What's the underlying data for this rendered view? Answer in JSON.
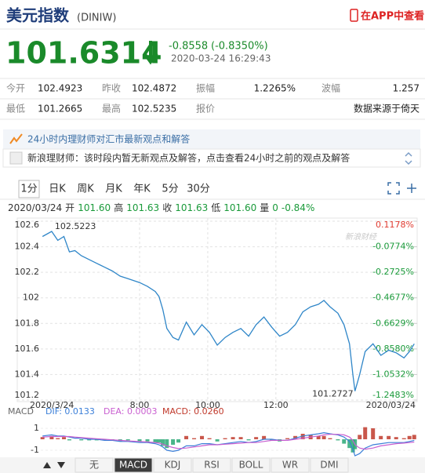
{
  "header": {
    "title": "美元指数",
    "code": "(DINIW)",
    "app_link": "在APP中查看"
  },
  "quote": {
    "price": "101.6314",
    "change": "-0.8558",
    "change_pct": "(-0.8350%)",
    "time": "2020-03-24 16:29:43"
  },
  "stats": {
    "rows": [
      [
        {
          "label": "今开",
          "value": "102.4923"
        },
        {
          "label": "昨收",
          "value": "102.4872"
        },
        {
          "label": "振幅",
          "value": "1.2265%"
        },
        {
          "label": "波幅",
          "value": "1.257"
        }
      ],
      [
        {
          "label": "最低",
          "value": "101.2665"
        },
        {
          "label": "最高",
          "value": "102.5235"
        },
        {
          "label": "报价"
        },
        {
          "value": "数据来源于倚天"
        }
      ]
    ]
  },
  "advisor": {
    "banner": "24小时内理财师对汇市最新观点和解答",
    "message": "新浪理财师：该时段内暂无新观点及解答，点击查看24小时之前的观点及解答"
  },
  "period_tabs": {
    "items": [
      "1分",
      "日K",
      "周K",
      "月K",
      "年K",
      "5分",
      "30分"
    ],
    "selected": 0
  },
  "ohlc_line": {
    "date": "2020/03/24",
    "items": [
      {
        "label": "开",
        "value": "101.60"
      },
      {
        "label": "高",
        "value": "101.63"
      },
      {
        "label": "收",
        "value": "101.63"
      },
      {
        "label": "低",
        "value": "101.60"
      },
      {
        "label": "量",
        "value": "0"
      }
    ],
    "change": "-0.84%"
  },
  "chart_data": [
    {
      "type": "line",
      "color": "#2f86c8",
      "grid": true,
      "watermark": "新浪财经",
      "x_start_label": "2020/3/24",
      "x_end_label": "2020/03/24",
      "max_label": "102.5223",
      "min_label": "101.2727",
      "x": [
        5.15,
        5.42,
        5.6,
        5.78,
        5.94,
        6.1,
        6.29,
        6.52,
        6.74,
        6.97,
        7.2,
        7.43,
        7.66,
        8.0,
        8.23,
        8.46,
        8.57,
        8.68,
        8.8,
        8.98,
        9.14,
        9.37,
        9.6,
        9.83,
        10.05,
        10.28,
        10.51,
        10.74,
        10.97,
        11.2,
        11.42,
        11.65,
        11.88,
        12.11,
        12.34,
        12.57,
        12.79,
        13.02,
        13.25,
        13.41,
        13.59,
        13.82,
        14.0,
        14.16,
        14.26,
        14.32,
        14.46,
        14.62,
        14.85,
        15.08,
        15.31,
        15.53,
        15.76,
        15.92,
        16.06
      ],
      "values": [
        102.48,
        102.52,
        102.45,
        102.48,
        102.36,
        102.37,
        102.33,
        102.3,
        102.27,
        102.24,
        102.21,
        102.17,
        102.15,
        102.12,
        102.09,
        102.05,
        102.01,
        101.91,
        101.76,
        101.69,
        101.67,
        101.81,
        101.71,
        101.79,
        101.73,
        101.63,
        101.69,
        101.73,
        101.76,
        101.7,
        101.79,
        101.85,
        101.77,
        101.7,
        101.73,
        101.79,
        101.89,
        101.93,
        101.95,
        101.98,
        101.93,
        101.88,
        101.79,
        101.64,
        101.4,
        101.27,
        101.4,
        101.58,
        101.64,
        101.55,
        101.59,
        101.57,
        101.53,
        101.58,
        101.64
      ],
      "xlim": [
        5.1,
        16.1
      ],
      "xticks": [
        {
          "value": 8,
          "label": "8:00"
        },
        {
          "value": 10,
          "label": "10:00"
        },
        {
          "value": 12,
          "label": "12:00"
        }
      ],
      "ylim": [
        101.2,
        102.6
      ],
      "yticks": [
        102.6,
        102.4,
        102.2,
        102,
        101.8,
        101.6,
        101.4,
        101.2
      ],
      "y2lim": [
        -1.2483,
        0.1178
      ],
      "y2ticks": [
        {
          "value": 0.1178,
          "label": "0.1178%"
        },
        {
          "value": -0.0774,
          "label": "-0.0774%"
        },
        {
          "value": -0.2725,
          "label": "-0.2725%"
        },
        {
          "value": -0.4677,
          "label": "-0.4677%"
        },
        {
          "value": -0.6629,
          "label": "-0.6629%"
        },
        {
          "value": -0.858,
          "label": "-0.8580%"
        },
        {
          "value": -1.0532,
          "label": "-1.0532%"
        },
        {
          "value": -1.2483,
          "label": "-1.2483%"
        }
      ],
      "up_color": "#e03a2f",
      "down_color": "#1a9a3a"
    },
    {
      "type": "macd",
      "title": "MACD",
      "x": [
        5.15,
        5.42,
        5.6,
        5.78,
        5.94,
        6.1,
        6.29,
        6.52,
        6.74,
        6.97,
        7.2,
        7.43,
        7.66,
        8.0,
        8.23,
        8.46,
        8.57,
        8.68,
        8.8,
        8.98,
        9.14,
        9.37,
        9.6,
        9.83,
        10.05,
        10.28,
        10.51,
        10.74,
        10.97,
        11.2,
        11.42,
        11.65,
        11.88,
        12.11,
        12.34,
        12.57,
        12.79,
        13.02,
        13.25,
        13.41,
        13.59,
        13.82,
        14.0,
        14.16,
        14.26,
        14.32,
        14.46,
        14.62,
        14.85,
        15.08,
        15.31,
        15.53,
        15.76,
        15.92,
        16.06
      ],
      "xlim": [
        5.1,
        16.1
      ],
      "ylim": [
        -2,
        2
      ],
      "yticks": [
        1,
        -1
      ],
      "series": [
        {
          "name": "DIF: 0.0133",
          "kind": "line",
          "color": "#3b7fd8",
          "values": [
            0.3,
            0.4,
            0.3,
            0.3,
            0.2,
            0.1,
            0.1,
            0,
            0,
            -0.1,
            -0.1,
            -0.2,
            -0.2,
            -0.3,
            -0.3,
            -0.4,
            -0.5,
            -0.7,
            -1.0,
            -1.1,
            -1.0,
            -0.6,
            -0.6,
            -0.4,
            -0.4,
            -0.5,
            -0.4,
            -0.3,
            -0.2,
            -0.3,
            -0.2,
            0,
            0,
            -0.1,
            -0.1,
            0.1,
            0.3,
            0.4,
            0.5,
            0.6,
            0.5,
            0.4,
            0.2,
            -0.2,
            -0.9,
            -1.5,
            -1.3,
            -0.8,
            -0.5,
            -0.4,
            -0.3,
            -0.3,
            -0.3,
            -0.2,
            -0.1
          ]
        },
        {
          "name": "DEA: 0.0003",
          "kind": "line",
          "color": "#c95fd0",
          "values": [
            0.2,
            0.25,
            0.25,
            0.25,
            0.25,
            0.2,
            0.15,
            0.1,
            0.05,
            0,
            -0.05,
            -0.1,
            -0.15,
            -0.2,
            -0.25,
            -0.3,
            -0.35,
            -0.45,
            -0.6,
            -0.75,
            -0.85,
            -0.8,
            -0.7,
            -0.6,
            -0.5,
            -0.5,
            -0.45,
            -0.4,
            -0.35,
            -0.3,
            -0.3,
            -0.2,
            -0.1,
            -0.1,
            -0.1,
            0,
            0.1,
            0.2,
            0.3,
            0.4,
            0.45,
            0.45,
            0.4,
            0.2,
            -0.1,
            -0.5,
            -0.8,
            -0.9,
            -0.8,
            -0.6,
            -0.5,
            -0.4,
            -0.35,
            -0.3,
            -0.25
          ]
        },
        {
          "name": "MACD: 0.0260",
          "kind": "bar",
          "color": "#c0392b",
          "up_color": "#c0392b",
          "down_color": "#2aa876",
          "values": [
            0.2,
            0.3,
            0.1,
            0.2,
            -0.1,
            0,
            -0.1,
            -0.1,
            -0.1,
            -0.1,
            -0.1,
            -0.2,
            -0.1,
            -0.2,
            -0.2,
            -0.3,
            -0.3,
            -0.6,
            -0.8,
            -0.5,
            -0.3,
            0.3,
            0.1,
            0.3,
            0.1,
            -0.2,
            0.1,
            0.2,
            0.2,
            -0.1,
            0.2,
            0.3,
            -0.1,
            -0.2,
            0.1,
            0.3,
            0.5,
            0.4,
            0.3,
            0.3,
            0.1,
            -0.1,
            -0.4,
            -0.8,
            -1.2,
            -0.9,
            0.4,
            1.1,
            1.0,
            0.3,
            0.3,
            0.2,
            0.1,
            0.3,
            0.4
          ]
        }
      ]
    }
  ],
  "indicator_tabs": {
    "items": [
      "无",
      "MACD",
      "KDJ",
      "RSI",
      "BOLL",
      "WR",
      "DMI"
    ],
    "selected": 1
  }
}
